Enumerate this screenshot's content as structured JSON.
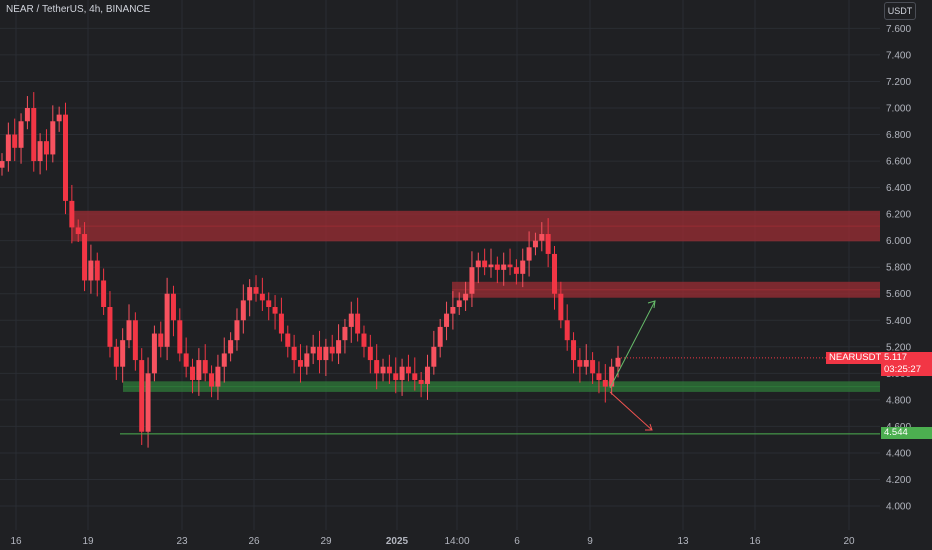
{
  "header": {
    "title": "NEAR / TetherUS, 4h, BINANCE",
    "currency": "USDT"
  },
  "tags": {
    "symbol": "NEARUSDT",
    "last_price": "5.117",
    "countdown": "03:25:27",
    "support_price": "4.544"
  },
  "colors": {
    "background": "#1f2023",
    "grid": "#2a2d33",
    "up": "#f7525f",
    "down": "#f23645",
    "resistance_zone": "#9c2c34",
    "support_zone": "#2f7a3a",
    "support_line": "#4caf50"
  },
  "chart_data": {
    "type": "candlestick",
    "title": "NEAR / TetherUS, 4h, BINANCE",
    "y_ticks": [
      "4.000",
      "4.200",
      "4.400",
      "4.600",
      "4.800",
      "5.000",
      "5.200",
      "5.400",
      "5.600",
      "5.800",
      "6.000",
      "6.200",
      "6.400",
      "6.600",
      "6.800",
      "7.000",
      "7.200",
      "7.400",
      "7.600"
    ],
    "x_ticks": [
      "16",
      "19",
      "23",
      "26",
      "29",
      "2025",
      "14:00",
      "6",
      "9",
      "13",
      "16",
      "20"
    ],
    "ylim": [
      3.75,
      7.75
    ],
    "zones": [
      {
        "kind": "resistance",
        "from": 5.995,
        "to": 6.225
      },
      {
        "kind": "resistance",
        "from": 5.57,
        "to": 5.69
      },
      {
        "kind": "support",
        "from": 4.86,
        "to": 4.94
      }
    ],
    "support_line": 4.544,
    "last_price": 5.117,
    "closes": [
      6.6,
      6.8,
      6.7,
      6.9,
      7.0,
      6.6,
      6.75,
      6.65,
      6.9,
      6.95,
      6.3,
      6.1,
      6.05,
      5.7,
      5.85,
      5.7,
      5.5,
      5.2,
      5.05,
      5.25,
      5.4,
      5.1,
      4.56,
      5.0,
      5.3,
      5.2,
      5.6,
      5.4,
      5.15,
      5.05,
      4.95,
      5.1,
      5.0,
      4.9,
      5.05,
      5.15,
      5.25,
      5.4,
      5.55,
      5.65,
      5.6,
      5.55,
      5.5,
      5.45,
      5.3,
      5.2,
      5.1,
      5.05,
      5.15,
      5.2,
      5.1,
      5.2,
      5.15,
      5.25,
      5.35,
      5.45,
      5.3,
      5.2,
      5.1,
      5.0,
      5.05,
      5.0,
      4.95,
      5.05,
      5.0,
      4.95,
      4.92,
      5.05,
      5.2,
      5.35,
      5.45,
      5.5,
      5.55,
      5.6,
      5.8,
      5.85,
      5.8,
      5.82,
      5.78,
      5.82,
      5.8,
      5.75,
      5.85,
      5.95,
      6.0,
      6.05,
      5.9,
      5.6,
      5.4,
      5.25,
      5.1,
      5.05,
      5.1,
      5.0,
      4.95,
      4.9,
      5.05,
      5.117
    ]
  }
}
